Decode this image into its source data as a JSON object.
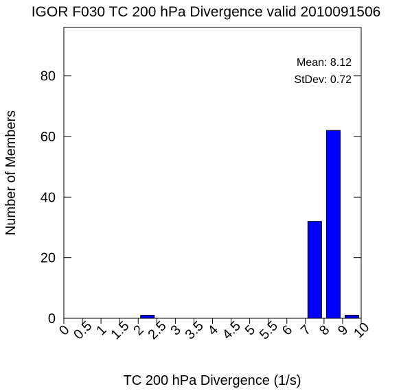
{
  "chart_data": {
    "type": "bar",
    "title": "IGOR F030 TC 200 hPa Divergence valid 2010091506",
    "xlabel": "TC 200 hPa Divergence (1/s)",
    "ylabel": "Number of Members",
    "x_tick_labels": [
      "0",
      "0.5",
      "1",
      "1.5",
      "2",
      "2.5",
      "3",
      "3.5",
      "4",
      "4.5",
      "5",
      "5.5",
      "6",
      "7",
      "8",
      "9",
      "10"
    ],
    "x_tick_values": [
      0,
      0.5,
      1,
      1.5,
      2,
      2.5,
      3,
      3.5,
      4,
      4.5,
      5,
      5.5,
      6,
      7,
      8,
      9,
      10
    ],
    "y_ticks": [
      0,
      20,
      40,
      60,
      80
    ],
    "ylim": [
      0,
      96
    ],
    "bin_edges": [
      0,
      0.5,
      1,
      1.5,
      2,
      2.5,
      3,
      3.5,
      4,
      4.5,
      5,
      5.5,
      6,
      7,
      8,
      9,
      10
    ],
    "values": [
      0,
      0,
      0,
      0,
      1,
      0,
      0,
      0,
      0,
      0,
      0,
      0,
      0,
      32,
      62,
      1
    ],
    "bar_color": "#0000ff",
    "stats": {
      "mean_text": "Mean: 8.12",
      "stdev_text": "StDev: 0.72"
    },
    "grid": false
  }
}
